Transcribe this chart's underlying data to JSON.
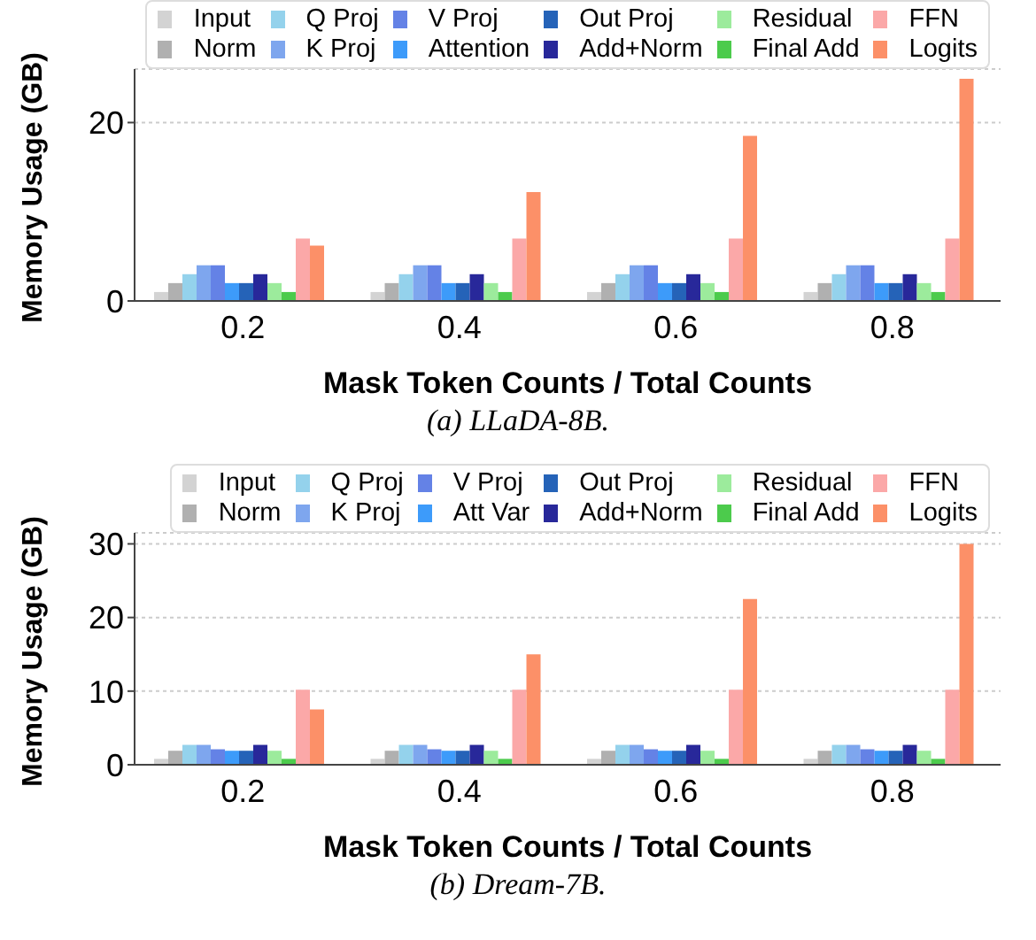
{
  "chart_data": [
    {
      "type": "bar",
      "title": "(a) LLaDA-8B.",
      "xlabel": "Mask Token Counts / Total Counts",
      "ylabel": "Memory Usage (GB)",
      "categories": [
        "0.2",
        "0.4",
        "0.6",
        "0.8"
      ],
      "ylim": [
        0,
        26
      ],
      "yticks": [
        0,
        20
      ],
      "grid": "y",
      "legend": "top",
      "series": [
        {
          "name": "Input",
          "color": "#d3d3d3",
          "values": [
            1,
            1,
            1,
            1
          ]
        },
        {
          "name": "Norm",
          "color": "#b0b0b0",
          "values": [
            2,
            2,
            2,
            2
          ]
        },
        {
          "name": "Q Proj",
          "color": "#94d2ec",
          "values": [
            3,
            3,
            3,
            3
          ]
        },
        {
          "name": "K Proj",
          "color": "#7ea6ee",
          "values": [
            4,
            4,
            4,
            4
          ]
        },
        {
          "name": "V Proj",
          "color": "#6482e6",
          "values": [
            4,
            4,
            4,
            4
          ]
        },
        {
          "name": "Attention",
          "color": "#3d9bfa",
          "values": [
            2,
            2,
            2,
            2
          ]
        },
        {
          "name": "Out Proj",
          "color": "#2563b8",
          "values": [
            2,
            2,
            2,
            2
          ]
        },
        {
          "name": "Add+Norm",
          "color": "#28289a",
          "values": [
            3,
            3,
            3,
            3
          ]
        },
        {
          "name": "Residual",
          "color": "#9ceb9c",
          "values": [
            2,
            2,
            2,
            2
          ]
        },
        {
          "name": "Final Add",
          "color": "#4ccb4c",
          "values": [
            1,
            1,
            1,
            1
          ]
        },
        {
          "name": "FFN",
          "color": "#fba8a8",
          "values": [
            7,
            7,
            7,
            7
          ]
        },
        {
          "name": "Logits",
          "color": "#fc9068",
          "values": [
            6.2,
            12.2,
            18.5,
            24.9
          ]
        }
      ]
    },
    {
      "type": "bar",
      "title": "(b) Dream-7B.",
      "xlabel": "Mask Token Counts / Total Counts",
      "ylabel": "Memory Usage (GB)",
      "categories": [
        "0.2",
        "0.4",
        "0.6",
        "0.8"
      ],
      "ylim": [
        0,
        31.5
      ],
      "yticks": [
        0,
        10,
        20,
        30
      ],
      "grid": "y",
      "legend": "top",
      "series": [
        {
          "name": "Input",
          "color": "#d3d3d3",
          "values": [
            0.8,
            0.8,
            0.8,
            0.8
          ]
        },
        {
          "name": "Norm",
          "color": "#b0b0b0",
          "values": [
            1.9,
            1.9,
            1.9,
            1.9
          ]
        },
        {
          "name": "Q Proj",
          "color": "#94d2ec",
          "values": [
            2.7,
            2.7,
            2.7,
            2.7
          ]
        },
        {
          "name": "K Proj",
          "color": "#7ea6ee",
          "values": [
            2.7,
            2.7,
            2.7,
            2.7
          ]
        },
        {
          "name": "V Proj",
          "color": "#6482e6",
          "values": [
            2.1,
            2.1,
            2.1,
            2.1
          ]
        },
        {
          "name": "Att Var",
          "color": "#3d9bfa",
          "values": [
            1.9,
            1.9,
            1.9,
            1.9
          ]
        },
        {
          "name": "Out Proj",
          "color": "#2563b8",
          "values": [
            1.9,
            1.9,
            1.9,
            1.9
          ]
        },
        {
          "name": "Add+Norm",
          "color": "#28289a",
          "values": [
            2.7,
            2.7,
            2.7,
            2.7
          ]
        },
        {
          "name": "Residual",
          "color": "#9ceb9c",
          "values": [
            1.9,
            1.9,
            1.9,
            1.9
          ]
        },
        {
          "name": "Final Add",
          "color": "#4ccb4c",
          "values": [
            0.8,
            0.8,
            0.8,
            0.8
          ]
        },
        {
          "name": "FFN",
          "color": "#fba8a8",
          "values": [
            10.2,
            10.2,
            10.2,
            10.2
          ]
        },
        {
          "name": "Logits",
          "color": "#fc9068",
          "values": [
            7.5,
            15,
            22.5,
            30
          ]
        }
      ]
    }
  ]
}
